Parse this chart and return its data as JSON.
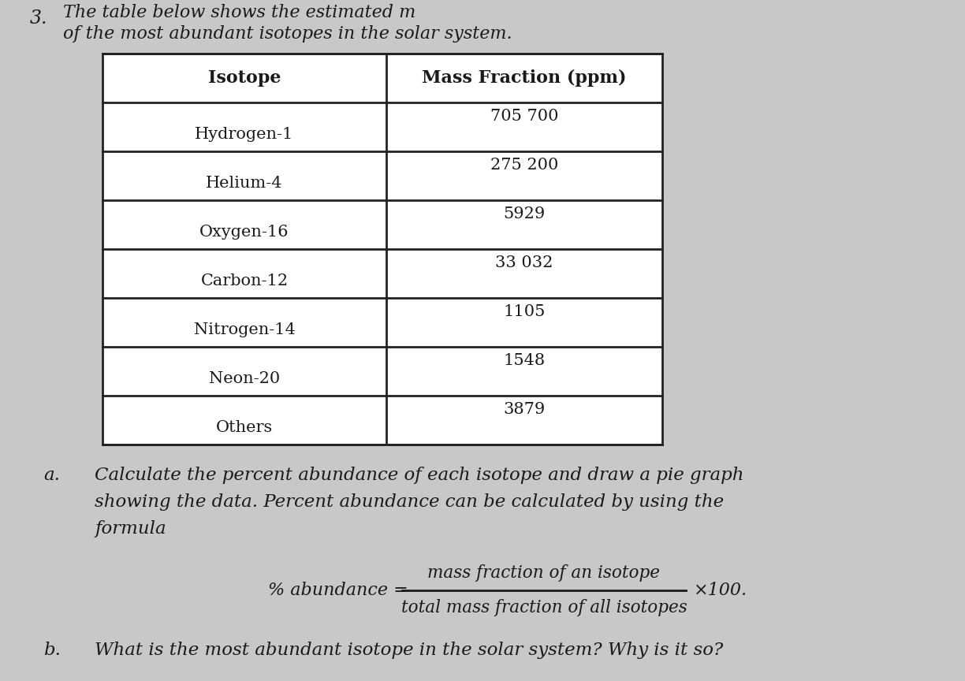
{
  "background_color": "#c8c8c8",
  "question_number": "3.",
  "intro_line1": "The table below shows the estimated m",
  "intro_line2": "of the most abundant isotopes in the solar system.",
  "table_header_col1": "Isotope",
  "table_header_col2": "Mass Fraction (ppm)",
  "table_rows": [
    [
      "Hydrogen-1",
      "705 700"
    ],
    [
      "Helium-4",
      "275 200"
    ],
    [
      "Oxygen-16",
      "5929"
    ],
    [
      "Carbon-12",
      "33 032"
    ],
    [
      "Nitrogen-14",
      "1105"
    ],
    [
      "Neon-20",
      "1548"
    ],
    [
      "Others",
      "3879"
    ]
  ],
  "part_a_label": "a.",
  "part_a_lines": [
    "Calculate the percent abundance of each isotope and draw a pie graph",
    "showing the data. Percent abundance can be calculated by using the",
    "formula"
  ],
  "formula_left": "% abundance =",
  "formula_numerator": "mass fraction of an isotope",
  "formula_denominator": "total mass fraction of all isotopes",
  "formula_right": "×100.",
  "part_b_label": "b.",
  "part_b_text": "What is the most abundant isotope in the solar system? Why is it so?",
  "text_color": "#1a1a1a",
  "table_line_color": "#222222",
  "white": "#ffffff"
}
